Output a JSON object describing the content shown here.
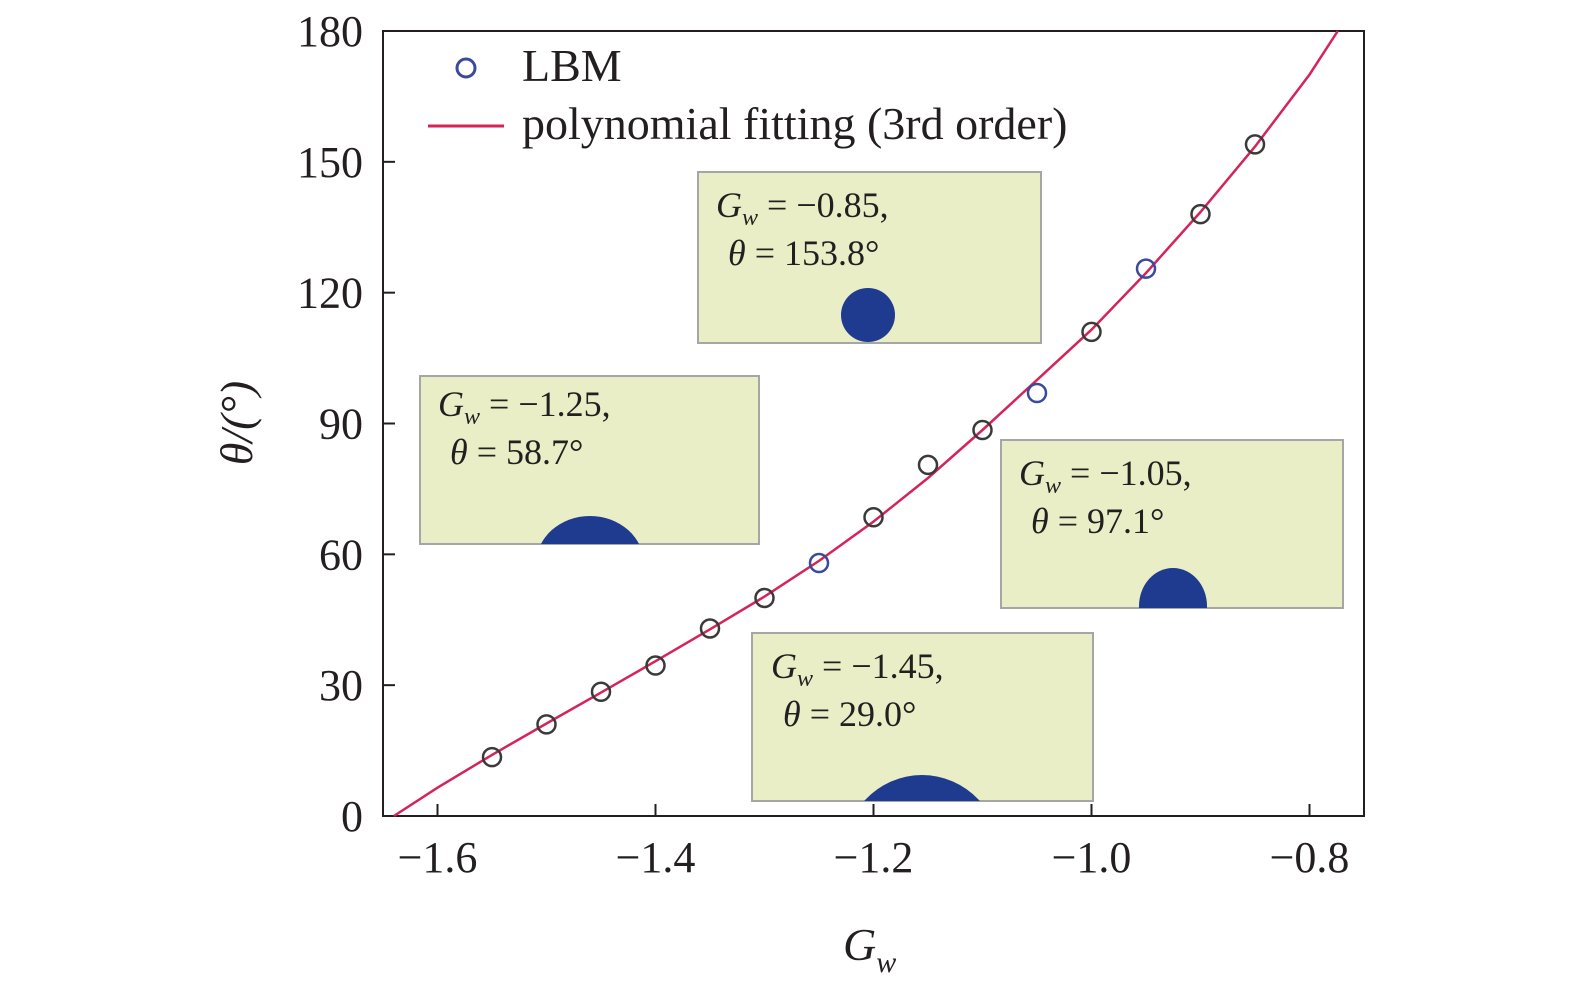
{
  "colors": {
    "marker_edge": "#3a3a3a",
    "marker_edge_alt": "#3c4a9a",
    "fit_line": "#d4245a",
    "inset_bg": "#e9eec6",
    "inset_border": "#a6a6a6",
    "droplet": "#1f3b8f",
    "axis": "#231f20"
  },
  "chart_data": {
    "type": "scatter",
    "xlabel": "G",
    "xlabel_sub": "w",
    "ylabel": "θ/(°)",
    "xlim": [
      -1.65,
      -0.75
    ],
    "ylim": [
      0,
      180
    ],
    "xticks": [
      -1.6,
      -1.4,
      -1.2,
      -1.0,
      -0.8
    ],
    "xtick_labels": [
      "−1.6",
      "−1.4",
      "−1.2",
      "−1.0",
      "−0.8"
    ],
    "yticks": [
      0,
      30,
      60,
      90,
      120,
      150,
      180
    ],
    "ytick_labels": [
      "0",
      "30",
      "60",
      "90",
      "120",
      "150",
      "180"
    ],
    "legend_position": "top-left",
    "series": [
      {
        "name": "LBM",
        "kind": "markers",
        "x": [
          -1.55,
          -1.5,
          -1.45,
          -1.4,
          -1.35,
          -1.3,
          -1.25,
          -1.2,
          -1.15,
          -1.1,
          -1.05,
          -1.0,
          -0.95,
          -0.9,
          -0.85
        ],
        "y": [
          13.5,
          21,
          28.5,
          34.5,
          43,
          50,
          58,
          68.5,
          80.5,
          88.5,
          97,
          111,
          125.5,
          138,
          154
        ],
        "highlight_alt_color": [
          false,
          false,
          false,
          false,
          false,
          false,
          true,
          false,
          false,
          false,
          true,
          false,
          true,
          false,
          false
        ]
      },
      {
        "name": "polynomial fitting (3rd order)",
        "kind": "line",
        "x": [
          -1.64,
          -1.6,
          -1.55,
          -1.5,
          -1.45,
          -1.4,
          -1.35,
          -1.3,
          -1.25,
          -1.2,
          -1.15,
          -1.1,
          -1.05,
          -1.0,
          -0.95,
          -0.9,
          -0.85,
          -0.8,
          -0.774
        ],
        "y": [
          0,
          6.5,
          14,
          21.2,
          28.3,
          35.5,
          42.8,
          50.3,
          58.5,
          67.5,
          77.5,
          88.5,
          100.0,
          111.5,
          124.5,
          138.5,
          153.5,
          170,
          180
        ]
      }
    ],
    "insets": [
      {
        "gw_value": " = −0.85,",
        "theta_value": " = 153.8°",
        "droplet": "sphere"
      },
      {
        "gw_value": " = −1.25,",
        "theta_value": " = 58.7°",
        "droplet": "cap-wide"
      },
      {
        "gw_value": " = −1.05,",
        "theta_value": " = 97.1°",
        "droplet": "cap-tall"
      },
      {
        "gw_value": " = −1.45,",
        "theta_value": " = 29.0°",
        "droplet": "cap-flat"
      }
    ],
    "inset_symbol_gw": "G",
    "inset_symbol_gw_sub": "w",
    "inset_symbol_theta": "θ"
  }
}
